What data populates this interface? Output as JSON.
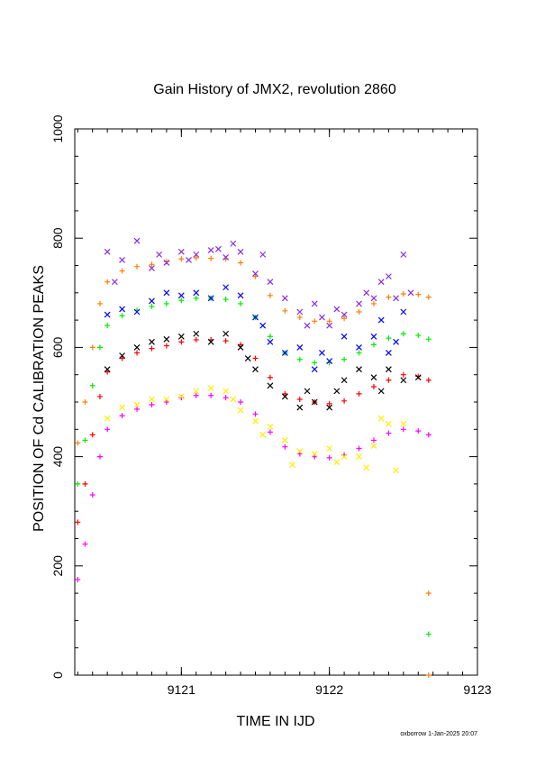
{
  "chart_data": {
    "type": "scatter",
    "title": "Gain History of JMX2, revolution 2860",
    "xlabel": "TIME IN IJD",
    "ylabel": "POSITION OF Cd CALIBRATION PEAKS",
    "xlim": [
      9120.28,
      9123.0
    ],
    "ylim": [
      0,
      1000
    ],
    "xticks": [
      9121,
      9122,
      9123
    ],
    "yticks": [
      0,
      200,
      400,
      600,
      800,
      1000
    ],
    "grid": false,
    "series": [
      {
        "color": "#ff7f00",
        "marker": "plus",
        "x": [
          9120.3,
          9120.35,
          9120.4,
          9120.45,
          9120.5,
          9120.6,
          9120.7,
          9120.8,
          9120.9,
          9121.0,
          9121.1,
          9121.2,
          9121.3,
          9121.4,
          9121.5,
          9121.6,
          9121.7,
          9121.8,
          9121.9,
          9122.0,
          9122.1,
          9122.2,
          9122.3,
          9122.4,
          9122.5,
          9122.6,
          9122.67
        ],
        "y": [
          425,
          500,
          600,
          680,
          720,
          740,
          748,
          752,
          757,
          762,
          764,
          763,
          762,
          755,
          730,
          695,
          667,
          655,
          648,
          648,
          653,
          665,
          680,
          692,
          698,
          697,
          692
        ]
      },
      {
        "color": "#00ee00",
        "marker": "plus",
        "x": [
          9120.3,
          9120.35,
          9120.4,
          9120.45,
          9120.5,
          9120.6,
          9120.7,
          9120.8,
          9120.9,
          9121.0,
          9121.1,
          9121.2,
          9121.3,
          9121.4,
          9121.5,
          9121.6,
          9121.7,
          9121.8,
          9121.9,
          9122.0,
          9122.1,
          9122.2,
          9122.3,
          9122.4,
          9122.5,
          9122.6,
          9122.67
        ],
        "y": [
          350,
          430,
          530,
          600,
          640,
          658,
          668,
          675,
          680,
          686,
          690,
          690,
          688,
          680,
          655,
          620,
          590,
          578,
          572,
          572,
          578,
          590,
          605,
          617,
          625,
          622,
          615
        ]
      },
      {
        "color": "#ff0000",
        "marker": "plus",
        "x": [
          9120.3,
          9120.35,
          9120.4,
          9120.45,
          9120.5,
          9120.6,
          9120.7,
          9120.8,
          9120.9,
          9121.0,
          9121.1,
          9121.2,
          9121.3,
          9121.4,
          9121.5,
          9121.6,
          9121.7,
          9121.8,
          9121.9,
          9122.0,
          9122.1,
          9122.2,
          9122.3,
          9122.4,
          9122.5,
          9122.6,
          9122.67
        ],
        "y": [
          280,
          350,
          440,
          510,
          555,
          580,
          590,
          598,
          603,
          610,
          614,
          614,
          612,
          605,
          580,
          545,
          515,
          505,
          500,
          497,
          502,
          515,
          528,
          540,
          550,
          547,
          540
        ]
      },
      {
        "color": "#ff00ff",
        "marker": "plus",
        "x": [
          9120.3,
          9120.35,
          9120.4,
          9120.45,
          9120.5,
          9120.6,
          9120.7,
          9120.8,
          9120.9,
          9121.0,
          9121.1,
          9121.2,
          9121.3,
          9121.4,
          9121.5,
          9121.6,
          9121.7,
          9121.8,
          9121.9,
          9122.0,
          9122.1,
          9122.2,
          9122.3,
          9122.4,
          9122.5,
          9122.6,
          9122.67
        ],
        "y": [
          175,
          240,
          330,
          400,
          450,
          475,
          487,
          495,
          500,
          508,
          512,
          512,
          508,
          500,
          478,
          445,
          418,
          405,
          400,
          398,
          403,
          415,
          430,
          443,
          450,
          447,
          440
        ]
      },
      {
        "color": "#8a2be2",
        "marker": "x",
        "x": [
          9120.5,
          9120.55,
          9120.6,
          9120.7,
          9120.8,
          9120.85,
          9120.9,
          9121.0,
          9121.05,
          9121.1,
          9121.2,
          9121.25,
          9121.3,
          9121.35,
          9121.4,
          9121.5,
          9121.55,
          9121.6,
          9121.7,
          9121.8,
          9121.85,
          9121.9,
          9121.95,
          9122.0,
          9122.05,
          9122.1,
          9122.2,
          9122.25,
          9122.3,
          9122.35,
          9122.4,
          9122.45,
          9122.5,
          9122.55
        ],
        "y": [
          775,
          720,
          760,
          795,
          745,
          770,
          755,
          775,
          760,
          770,
          778,
          780,
          765,
          790,
          775,
          735,
          770,
          720,
          690,
          665,
          640,
          680,
          655,
          640,
          670,
          660,
          680,
          700,
          690,
          720,
          730,
          690,
          770,
          700
        ]
      },
      {
        "color": "#0000ff",
        "marker": "x",
        "x": [
          9120.5,
          9120.6,
          9120.7,
          9120.8,
          9120.9,
          9121.0,
          9121.1,
          9121.2,
          9121.3,
          9121.4,
          9121.5,
          9121.55,
          9121.6,
          9121.7,
          9121.8,
          9121.9,
          9121.95,
          9122.0,
          9122.1,
          9122.2,
          9122.3,
          9122.35,
          9122.4,
          9122.45,
          9122.5
        ],
        "y": [
          660,
          670,
          665,
          685,
          700,
          695,
          700,
          690,
          710,
          695,
          655,
          640,
          610,
          590,
          600,
          560,
          590,
          575,
          620,
          600,
          620,
          650,
          590,
          610,
          665
        ]
      },
      {
        "color": "#000000",
        "marker": "x",
        "x": [
          9120.5,
          9120.6,
          9120.7,
          9120.8,
          9120.9,
          9121.0,
          9121.1,
          9121.2,
          9121.3,
          9121.4,
          9121.45,
          9121.5,
          9121.6,
          9121.7,
          9121.8,
          9121.85,
          9121.9,
          9122.0,
          9122.05,
          9122.1,
          9122.2,
          9122.3,
          9122.35,
          9122.4,
          9122.5,
          9122.6
        ],
        "y": [
          560,
          585,
          600,
          610,
          615,
          620,
          625,
          610,
          625,
          600,
          580,
          560,
          530,
          510,
          490,
          520,
          500,
          490,
          520,
          540,
          560,
          545,
          520,
          560,
          540,
          545
        ]
      },
      {
        "color": "#ffee00",
        "marker": "x",
        "x": [
          9120.5,
          9120.6,
          9120.7,
          9120.8,
          9120.9,
          9121.0,
          9121.1,
          9121.2,
          9121.3,
          9121.35,
          9121.4,
          9121.5,
          9121.55,
          9121.6,
          9121.7,
          9121.75,
          9121.8,
          9121.9,
          9122.0,
          9122.05,
          9122.1,
          9122.2,
          9122.25,
          9122.3,
          9122.35,
          9122.4,
          9122.45,
          9122.5
        ],
        "y": [
          470,
          490,
          495,
          505,
          505,
          510,
          520,
          525,
          520,
          505,
          485,
          465,
          440,
          455,
          430,
          385,
          410,
          405,
          415,
          390,
          400,
          400,
          380,
          420,
          470,
          460,
          375,
          460
        ]
      },
      {
        "color": "#ff7f00",
        "marker": "plus",
        "x": [
          9122.67
        ],
        "y": [
          150
        ]
      },
      {
        "color": "#00ee00",
        "marker": "plus",
        "x": [
          9122.67
        ],
        "y": [
          75
        ]
      },
      {
        "color": "#ff7f00",
        "marker": "plus",
        "x": [
          9122.67
        ],
        "y": [
          0
        ]
      }
    ]
  },
  "footer": {
    "stamp": "oxborrow  1-Jan-2025 20:07"
  }
}
